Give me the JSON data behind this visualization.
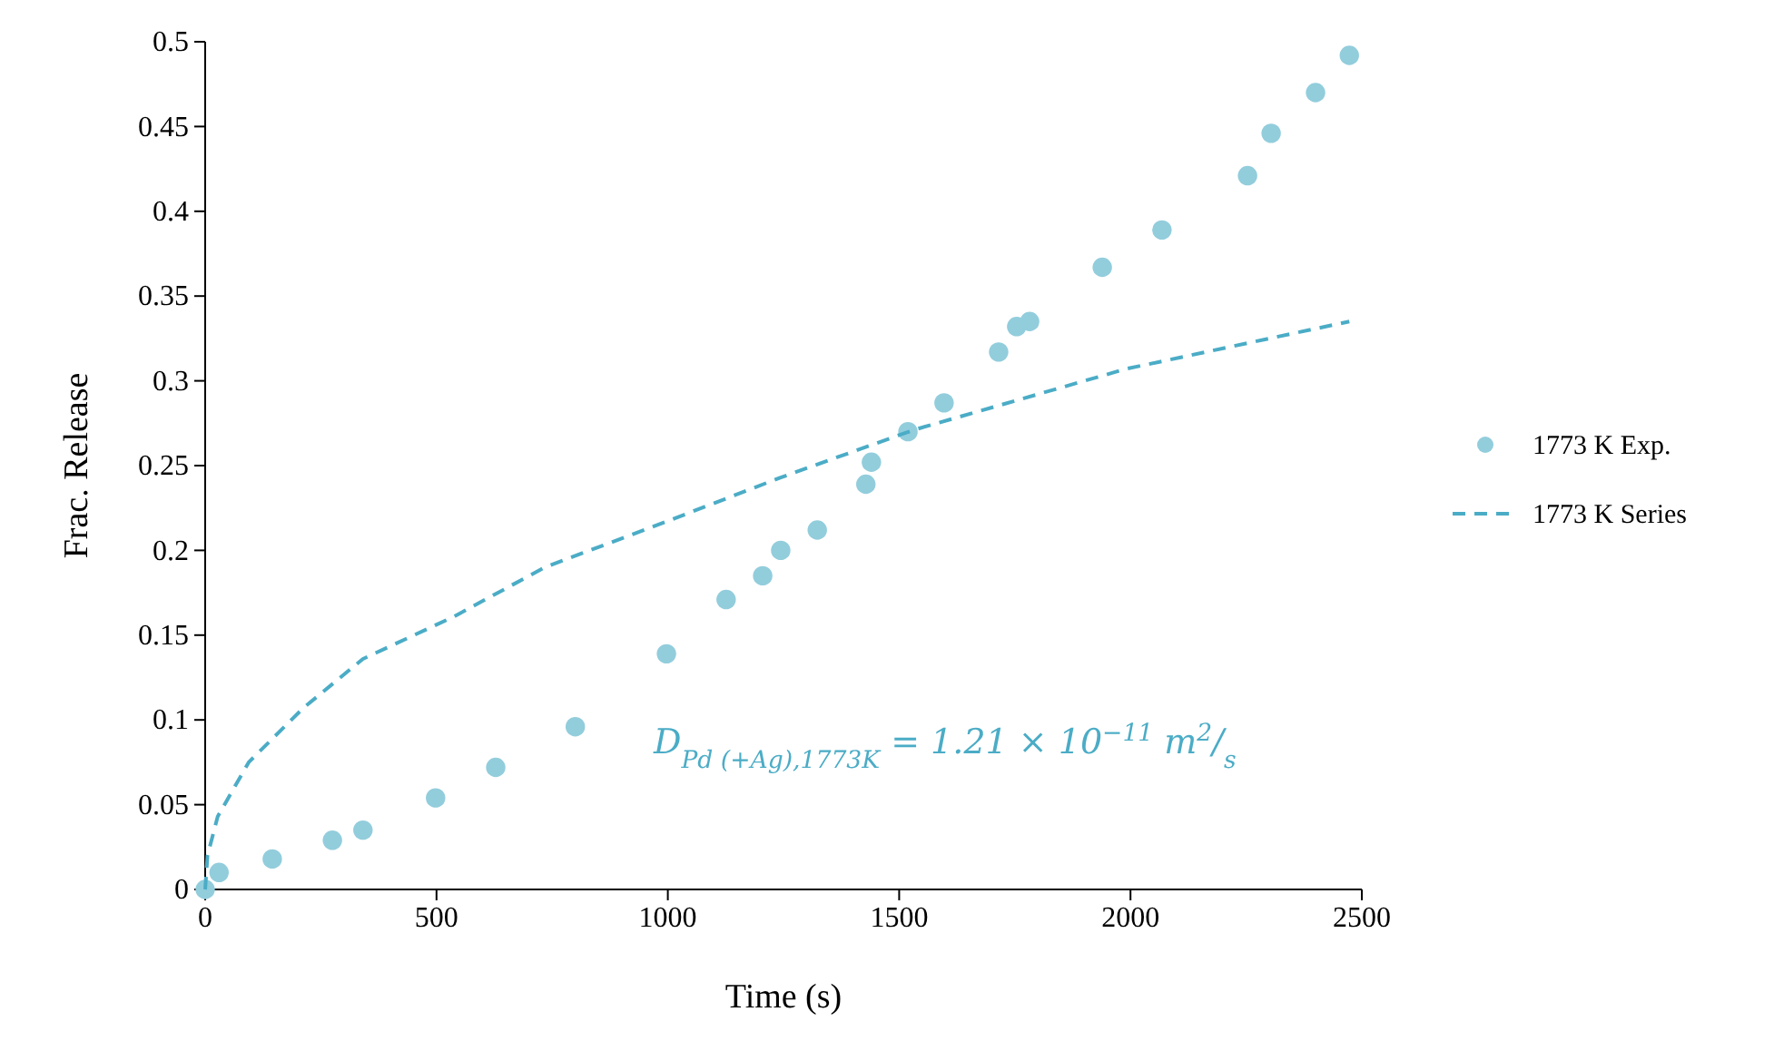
{
  "chart_data": {
    "type": "line",
    "xlabel": "Time (s)",
    "ylabel": "Frac. Release",
    "xlim": [
      0,
      2500
    ],
    "xticks": [
      0,
      500,
      1000,
      1500,
      2000,
      2500
    ],
    "ylim": [
      0,
      0.5
    ],
    "yticks": [
      0,
      0.05,
      0.1,
      0.15,
      0.2,
      0.25,
      0.3,
      0.35,
      0.4,
      0.45,
      0.5
    ],
    "grid": false,
    "legend": "right",
    "series": [
      {
        "name": "1773 K Exp.",
        "type": "scatter",
        "marker": "circle",
        "color": "#92cddc",
        "x": [
          0,
          30,
          145,
          275,
          341,
          498,
          628,
          800,
          997,
          1126,
          1205,
          1244,
          1323,
          1428,
          1440,
          1519,
          1597,
          1715,
          1754,
          1782,
          1939,
          2068,
          2253,
          2304,
          2400,
          2473
        ],
        "values": [
          0,
          0.01,
          0.018,
          0.029,
          0.035,
          0.054,
          0.072,
          0.096,
          0.139,
          0.171,
          0.185,
          0.2,
          0.212,
          0.239,
          0.252,
          0.27,
          0.287,
          0.317,
          0.332,
          0.335,
          0.367,
          0.389,
          0.421,
          0.446,
          0.47,
          0.492
        ]
      },
      {
        "name": "1773 K Series",
        "line_style": "dashed",
        "color": "#4bacc6",
        "x": [
          0,
          5,
          27,
          94,
          212,
          341,
          538,
          734,
          997,
          1244,
          1531,
          1990,
          2473
        ],
        "values": [
          0,
          0.02,
          0.043,
          0.075,
          0.107,
          0.136,
          0.161,
          0.19,
          0.217,
          0.243,
          0.271,
          0.307,
          0.335
        ]
      }
    ],
    "annotations": [
      "D$_{Pd (+Ag),1773K}$ = 1.21 × 10$^{−11}$ m$^{2}$/$_{s}$"
    ]
  }
}
